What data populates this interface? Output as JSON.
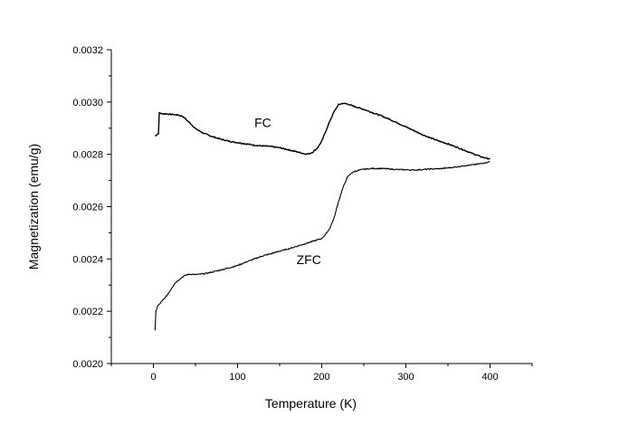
{
  "chart_data": {
    "type": "line",
    "xlabel": "Temperature (K)",
    "ylabel": "Magnetization (emu/g)",
    "xlim": [
      -50,
      450
    ],
    "ylim": [
      0.002,
      0.0032
    ],
    "x_ticks": [
      0,
      100,
      200,
      300,
      400
    ],
    "y_ticks": [
      "0.0020",
      "0.0022",
      "0.0024",
      "0.0026",
      "0.0028",
      "0.0030",
      "0.0032"
    ],
    "grid": false,
    "legend": "none",
    "series": [
      {
        "name": "FC",
        "color": "#000000",
        "x": [
          2,
          4,
          6,
          7,
          8,
          10,
          15,
          20,
          25,
          30,
          35,
          40,
          45,
          50,
          60,
          70,
          80,
          90,
          100,
          110,
          120,
          130,
          140,
          150,
          160,
          170,
          180,
          185,
          190,
          195,
          200,
          205,
          210,
          215,
          220,
          225,
          230,
          240,
          250,
          260,
          270,
          280,
          290,
          300,
          310,
          320,
          330,
          340,
          350,
          360,
          370,
          380,
          390,
          400
        ],
        "values": [
          0.00287,
          0.002875,
          0.00288,
          0.002958,
          0.002958,
          0.002955,
          0.002955,
          0.002953,
          0.002952,
          0.00295,
          0.002945,
          0.00293,
          0.002915,
          0.002898,
          0.00288,
          0.002868,
          0.002858,
          0.00285,
          0.002845,
          0.00284,
          0.002835,
          0.002832,
          0.00283,
          0.002825,
          0.002818,
          0.00281,
          0.002802,
          0.002802,
          0.00281,
          0.002825,
          0.00285,
          0.00289,
          0.00293,
          0.002965,
          0.00299,
          0.002995,
          0.002993,
          0.002982,
          0.002972,
          0.00296,
          0.002948,
          0.002935,
          0.00292,
          0.002905,
          0.00289,
          0.002875,
          0.002862,
          0.00285,
          0.00284,
          0.002828,
          0.002815,
          0.002802,
          0.00279,
          0.002782
        ]
      },
      {
        "name": "ZFC",
        "color": "#000000",
        "x": [
          2,
          3,
          5,
          8,
          12,
          16,
          20,
          25,
          30,
          35,
          40,
          45,
          50,
          60,
          70,
          80,
          90,
          100,
          110,
          120,
          130,
          140,
          150,
          160,
          170,
          180,
          190,
          200,
          205,
          210,
          215,
          220,
          225,
          230,
          235,
          240,
          250,
          260,
          270,
          280,
          290,
          300,
          310,
          320,
          330,
          340,
          350,
          360,
          370,
          380,
          390,
          400
        ],
        "values": [
          0.002125,
          0.0022,
          0.00222,
          0.00223,
          0.002245,
          0.00226,
          0.00228,
          0.002305,
          0.00232,
          0.002332,
          0.00234,
          0.002342,
          0.00234,
          0.002343,
          0.00235,
          0.002358,
          0.002366,
          0.002375,
          0.002388,
          0.0024,
          0.002412,
          0.00242,
          0.00243,
          0.002438,
          0.002448,
          0.002458,
          0.002468,
          0.002478,
          0.002495,
          0.00252,
          0.00256,
          0.00262,
          0.00267,
          0.00271,
          0.002728,
          0.002736,
          0.002743,
          0.002746,
          0.002746,
          0.002744,
          0.002742,
          0.002741,
          0.00274,
          0.002742,
          0.002744,
          0.002745,
          0.002748,
          0.002752,
          0.002757,
          0.00276,
          0.002765,
          0.002772
        ]
      }
    ],
    "annotations": [
      {
        "text": "FC",
        "x": 120,
        "y": 0.002905
      },
      {
        "text": "ZFC",
        "x": 170,
        "y": 0.00238
      }
    ]
  }
}
